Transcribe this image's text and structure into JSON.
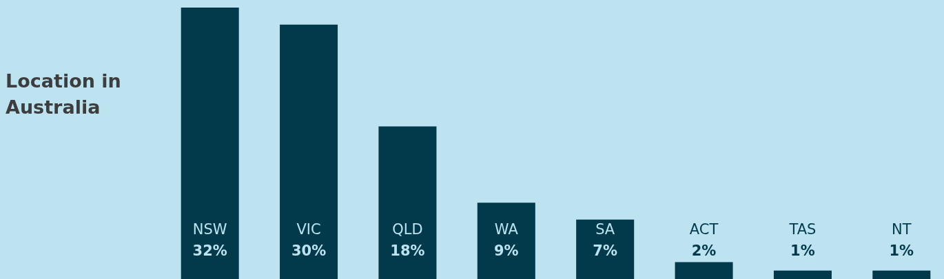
{
  "chart_data": {
    "type": "bar",
    "title": "Location in Australia",
    "categories": [
      "NSW",
      "VIC",
      "QLD",
      "WA",
      "SA",
      "ACT",
      "TAS",
      "NT"
    ],
    "values": [
      32,
      30,
      18,
      9,
      7,
      2,
      1,
      1
    ],
    "value_labels": [
      "32%",
      "30%",
      "18%",
      "9%",
      "7%",
      "2%",
      "1%",
      "1%"
    ],
    "color": "#023a4b"
  }
}
